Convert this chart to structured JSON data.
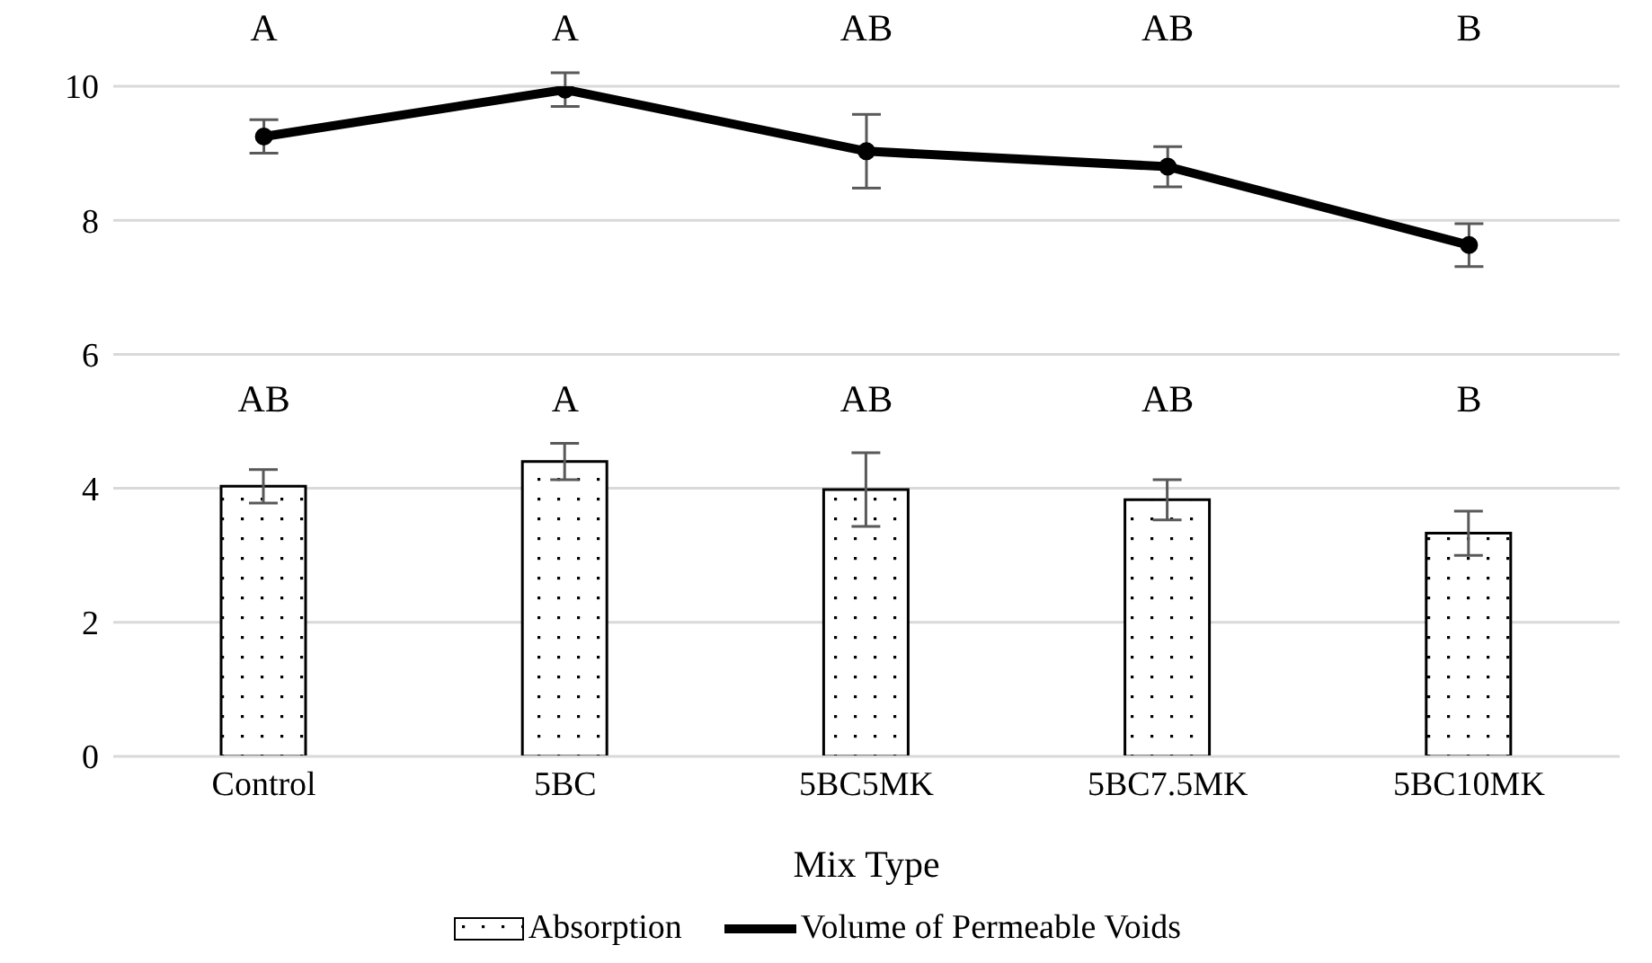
{
  "chart_data": {
    "type": "bar",
    "xlabel": "Mix Type",
    "categories": [
      "Control",
      "5BC",
      "5BC5MK",
      "5BC7.5MK",
      "5BC10MK"
    ],
    "series": [
      {
        "name": "Absorption",
        "color": "#000000",
        "values": [
          4.03,
          4.4,
          3.98,
          3.83,
          3.33
        ],
        "errors": [
          0.25,
          0.27,
          0.55,
          0.3,
          0.33
        ]
      },
      {
        "name": "Volume of Permeable Voids",
        "type": "line",
        "color": "#000000",
        "marker": "circle",
        "values": [
          9.25,
          9.95,
          9.03,
          8.8,
          7.63
        ],
        "errors": [
          0.25,
          0.25,
          0.55,
          0.3,
          0.32
        ]
      }
    ],
    "ylim": [
      0,
      10
    ],
    "yticks": [
      0,
      2,
      4,
      6,
      8,
      10
    ],
    "grid": "y",
    "legend": "bottom",
    "annotations": [
      "A",
      "A",
      "AB",
      "AB",
      "B",
      "AB",
      "A",
      "AB",
      "AB",
      "B"
    ]
  }
}
